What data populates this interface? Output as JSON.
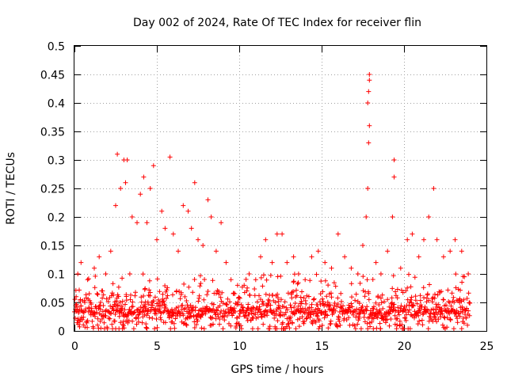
{
  "chart_data": {
    "type": "scatter",
    "title": "Day 002 of 2024, Rate Of TEC Index for receiver flin",
    "xlabel": "GPS time / hours",
    "ylabel": "ROTI / TECUs",
    "xlim": [
      0,
      25
    ],
    "ylim": [
      0,
      0.5
    ],
    "xticks": [
      0,
      5,
      10,
      15,
      20,
      25
    ],
    "yticks": [
      0,
      0.05,
      0.1,
      0.15,
      0.2,
      0.25,
      0.3,
      0.35,
      0.4,
      0.45,
      0.5
    ],
    "xtick_labels": [
      "0",
      "5",
      "10",
      "15",
      "20",
      "25"
    ],
    "ytick_labels": [
      "0",
      "0.05",
      "0.1",
      "0.15",
      "0.2",
      "0.25",
      "0.3",
      "0.35",
      "0.4",
      "0.45",
      "0.5"
    ],
    "grid": true,
    "marker": "+",
    "color": "#ff0000",
    "series": [
      {
        "name": "ROTI",
        "points": [
          [
            0.1,
            0.06
          ],
          [
            0.2,
            0.1
          ],
          [
            0.4,
            0.12
          ],
          [
            0.8,
            0.09
          ],
          [
            1.2,
            0.11
          ],
          [
            1.5,
            0.13
          ],
          [
            1.9,
            0.1
          ],
          [
            2.2,
            0.14
          ],
          [
            2.5,
            0.22
          ],
          [
            2.6,
            0.31
          ],
          [
            2.8,
            0.25
          ],
          [
            3.0,
            0.3
          ],
          [
            3.1,
            0.26
          ],
          [
            3.2,
            0.3
          ],
          [
            3.5,
            0.2
          ],
          [
            3.8,
            0.19
          ],
          [
            4.0,
            0.24
          ],
          [
            4.2,
            0.27
          ],
          [
            4.4,
            0.19
          ],
          [
            4.6,
            0.25
          ],
          [
            4.8,
            0.29
          ],
          [
            5.0,
            0.16
          ],
          [
            5.3,
            0.21
          ],
          [
            5.5,
            0.18
          ],
          [
            5.8,
            0.305
          ],
          [
            6.0,
            0.17
          ],
          [
            6.3,
            0.14
          ],
          [
            6.6,
            0.22
          ],
          [
            6.9,
            0.21
          ],
          [
            7.1,
            0.18
          ],
          [
            7.3,
            0.26
          ],
          [
            7.5,
            0.16
          ],
          [
            7.8,
            0.15
          ],
          [
            8.1,
            0.23
          ],
          [
            8.3,
            0.2
          ],
          [
            8.6,
            0.14
          ],
          [
            8.9,
            0.19
          ],
          [
            9.2,
            0.12
          ],
          [
            9.5,
            0.09
          ],
          [
            9.9,
            0.08
          ],
          [
            10.3,
            0.08
          ],
          [
            10.6,
            0.1
          ],
          [
            11.0,
            0.09
          ],
          [
            11.3,
            0.13
          ],
          [
            11.6,
            0.16
          ],
          [
            12.0,
            0.12
          ],
          [
            12.3,
            0.17
          ],
          [
            12.6,
            0.17
          ],
          [
            12.9,
            0.12
          ],
          [
            13.3,
            0.13
          ],
          [
            13.6,
            0.1
          ],
          [
            14.0,
            0.09
          ],
          [
            14.4,
            0.13
          ],
          [
            14.8,
            0.14
          ],
          [
            15.2,
            0.12
          ],
          [
            15.6,
            0.11
          ],
          [
            16.0,
            0.17
          ],
          [
            16.4,
            0.13
          ],
          [
            16.8,
            0.11
          ],
          [
            17.2,
            0.1
          ],
          [
            17.5,
            0.15
          ],
          [
            17.7,
            0.2
          ],
          [
            17.8,
            0.25
          ],
          [
            17.85,
            0.33
          ],
          [
            17.9,
            0.36
          ],
          [
            17.8,
            0.4
          ],
          [
            17.85,
            0.42
          ],
          [
            17.9,
            0.45
          ],
          [
            17.9,
            0.44
          ],
          [
            18.3,
            0.12
          ],
          [
            18.6,
            0.1
          ],
          [
            19.0,
            0.14
          ],
          [
            19.3,
            0.2
          ],
          [
            19.4,
            0.27
          ],
          [
            19.4,
            0.3
          ],
          [
            19.8,
            0.11
          ],
          [
            20.2,
            0.16
          ],
          [
            20.5,
            0.17
          ],
          [
            20.9,
            0.13
          ],
          [
            21.2,
            0.16
          ],
          [
            21.5,
            0.2
          ],
          [
            21.8,
            0.25
          ],
          [
            22.0,
            0.16
          ],
          [
            22.4,
            0.13
          ],
          [
            22.8,
            0.14
          ],
          [
            23.1,
            0.16
          ],
          [
            23.5,
            0.14
          ],
          [
            23.9,
            0.1
          ]
        ],
        "generated_background": {
          "x_from": 0,
          "x_to": 24,
          "step": 0.025,
          "base": 0.035,
          "jitter": 0.045
        }
      }
    ]
  }
}
